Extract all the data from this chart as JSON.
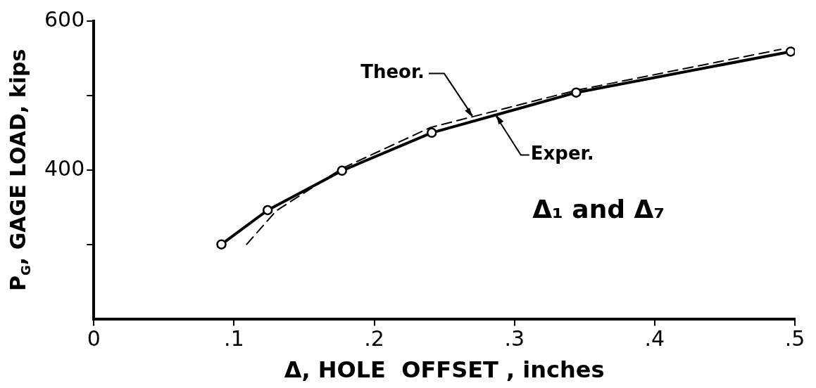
{
  "chart_data": {
    "type": "line",
    "xlabel": "Δ, HOLE  OFFSET , inches",
    "ylabel": "P$_{G}$, GAGE LOAD, kips",
    "xlim": [
      0,
      0.5
    ],
    "xticks": [
      0,
      {
        "value": 0.1,
        "label": ".1"
      },
      {
        "value": 0.2,
        "label": ".2"
      },
      {
        "value": 0.3,
        "label": ".3"
      },
      {
        "value": 0.4,
        "label": ".4"
      },
      {
        "value": 0.5,
        "label": ".5"
      }
    ],
    "ylim": [
      200,
      600
    ],
    "yticks": [
      {
        "value": 300,
        "label": null
      },
      400,
      {
        "value": 500,
        "label": null
      },
      600
    ],
    "grid": false,
    "legend": false,
    "series": [
      {
        "x": [
          0.091,
          0.124,
          0.177,
          0.241,
          0.344,
          0.497
        ],
        "values": [
          300,
          346,
          399,
          450,
          504,
          559
        ],
        "color": "#000000",
        "marker": "circle",
        "line_style": "solid"
      },
      {
        "x": [
          0.109,
          0.13,
          0.177,
          0.24,
          0.344,
          0.49
        ],
        "values": [
          300,
          345,
          402,
          457,
          507,
          562
        ],
        "color": "#000000",
        "marker": "none",
        "line_style": "dashed"
      }
    ],
    "annotations": [
      {
        "text": "Theor.",
        "x": 0.27,
        "y": 471
      },
      {
        "text": "Exper.",
        "x": 0.287,
        "y": 474
      },
      "Δ₁ and Δ₇"
    ]
  }
}
